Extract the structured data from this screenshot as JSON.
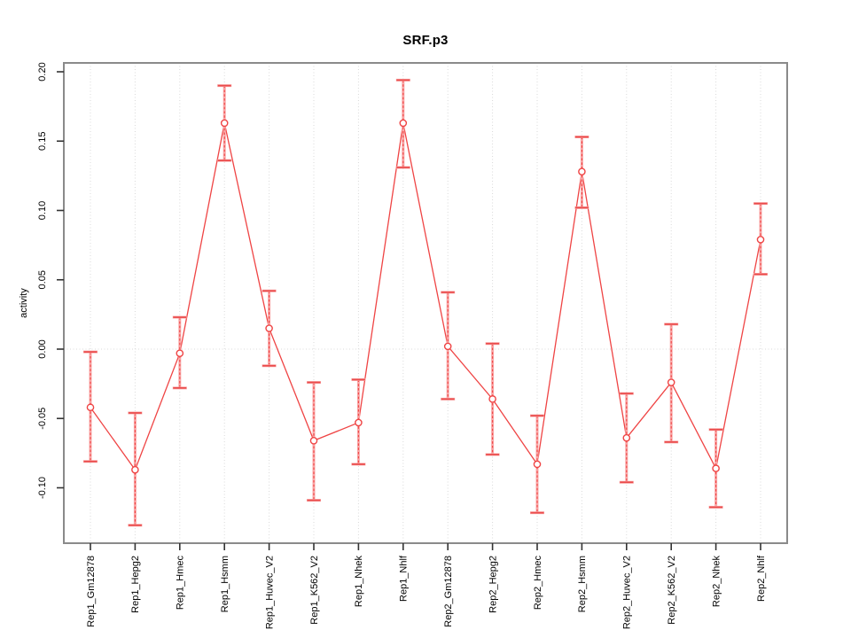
{
  "chart_data": {
    "type": "line",
    "subtype": "point-estimates-with-error-bars",
    "title": "SRF.p3",
    "xlabel": "",
    "ylabel": "activity",
    "categories": [
      "Rep1_Gm12878",
      "Rep1_Hepg2",
      "Rep1_Hmec",
      "Rep1_Hsmm",
      "Rep1_Huvec_V2",
      "Rep1_K562_V2",
      "Rep1_Nhek",
      "Rep1_Nhlf",
      "Rep2_Gm12878",
      "Rep2_Hepg2",
      "Rep2_Hmec",
      "Rep2_Hsmm",
      "Rep2_Huvec_V2",
      "Rep2_K562_V2",
      "Rep2_Nhek",
      "Rep2_Nhlf"
    ],
    "series": [
      {
        "name": "activity",
        "values": [
          -0.042,
          -0.087,
          -0.003,
          0.163,
          0.015,
          -0.066,
          -0.053,
          0.163,
          0.002,
          -0.036,
          -0.083,
          0.128,
          -0.064,
          -0.024,
          -0.086,
          0.079
        ],
        "lower": [
          -0.081,
          -0.127,
          -0.028,
          0.136,
          -0.012,
          -0.109,
          -0.083,
          0.131,
          -0.036,
          -0.076,
          -0.118,
          0.102,
          -0.096,
          -0.067,
          -0.114,
          0.054
        ],
        "upper": [
          -0.002,
          -0.046,
          0.023,
          0.19,
          0.042,
          -0.024,
          -0.022,
          0.194,
          0.041,
          0.004,
          -0.048,
          0.153,
          -0.032,
          0.018,
          -0.058,
          0.105
        ]
      }
    ],
    "yticks": [
      0.2,
      0.15,
      0.1,
      0.05,
      0.0,
      -0.05,
      -0.1
    ],
    "ylim": [
      -0.14,
      0.207
    ],
    "grid": "dotted vertical gridline per category plus dotted horizontal line at y=0",
    "legend": "none",
    "colors": {
      "line": "#ef4444",
      "marker_stroke": "#ef4444",
      "marker_fill": "#ffffff",
      "error_band": "#f9a8a8",
      "error_cap": "#ea4b4b",
      "gridline": "#d9d9d9",
      "box": "#8a8a8a",
      "tick": "#333333",
      "label_text": "#000000"
    }
  }
}
